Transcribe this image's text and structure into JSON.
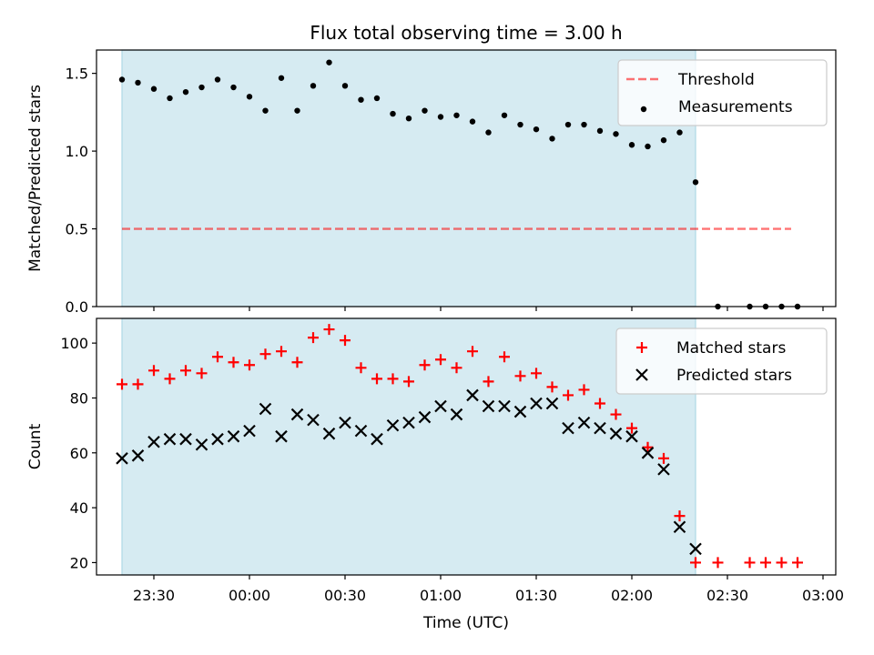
{
  "figure": {
    "title": "Flux total observing time = 3.00 h",
    "xlabel": "Time (UTC)",
    "xticks": [
      "23:30",
      "00:00",
      "00:30",
      "01:00",
      "01:30",
      "02:00",
      "02:30",
      "03:00"
    ],
    "colors": {
      "shade": "#add8e6",
      "threshold": "#ff0000",
      "matched": "#ff0000",
      "predicted": "#000000",
      "measurement": "#000000"
    }
  },
  "chart_data": [
    {
      "type": "scatter",
      "ylabel": "Matched/Predicted stars",
      "ylim": [
        0,
        1.65
      ],
      "yticks": [
        "0.0",
        "0.5",
        "1.0",
        "1.5"
      ],
      "xlim": [
        "23:12",
        "03:04"
      ],
      "shaded_span": [
        "23:20",
        "02:20"
      ],
      "legend": {
        "placement": "top-right",
        "entries": [
          "Threshold",
          "Measurements"
        ]
      },
      "threshold": {
        "name": "Threshold",
        "y": 0.5,
        "x_range": [
          "23:20",
          "02:50"
        ]
      },
      "series": [
        {
          "name": "Measurements",
          "x": [
            "23:20",
            "23:25",
            "23:30",
            "23:35",
            "23:40",
            "23:45",
            "23:50",
            "23:55",
            "00:00",
            "00:05",
            "00:10",
            "00:15",
            "00:20",
            "00:25",
            "00:30",
            "00:35",
            "00:40",
            "00:45",
            "00:50",
            "00:55",
            "01:00",
            "01:05",
            "01:10",
            "01:15",
            "01:20",
            "01:25",
            "01:30",
            "01:35",
            "01:40",
            "01:45",
            "01:50",
            "01:55",
            "02:00",
            "02:05",
            "02:10",
            "02:15",
            "02:20",
            "02:27",
            "02:37",
            "02:42",
            "02:47",
            "02:52"
          ],
          "values": [
            1.46,
            1.44,
            1.4,
            1.34,
            1.38,
            1.41,
            1.46,
            1.41,
            1.35,
            1.26,
            1.47,
            1.26,
            1.42,
            1.57,
            1.42,
            1.33,
            1.34,
            1.24,
            1.21,
            1.26,
            1.22,
            1.23,
            1.19,
            1.12,
            1.23,
            1.17,
            1.14,
            1.08,
            1.17,
            1.17,
            1.13,
            1.11,
            1.04,
            1.03,
            1.07,
            1.12,
            0.8,
            0.0,
            0.0,
            0.0,
            0.0,
            0.0
          ]
        }
      ]
    },
    {
      "type": "scatter",
      "ylabel": "Count",
      "ylim": [
        15.5,
        109
      ],
      "yticks": [
        "20",
        "40",
        "60",
        "80",
        "100"
      ],
      "xlim": [
        "23:12",
        "03:04"
      ],
      "shaded_span": [
        "23:20",
        "02:20"
      ],
      "legend": {
        "placement": "top-right",
        "entries": [
          "Matched stars",
          "Predicted stars"
        ]
      },
      "series": [
        {
          "name": "Matched stars",
          "marker": "plus",
          "x": [
            "23:20",
            "23:25",
            "23:30",
            "23:35",
            "23:40",
            "23:45",
            "23:50",
            "23:55",
            "00:00",
            "00:05",
            "00:10",
            "00:15",
            "00:20",
            "00:25",
            "00:30",
            "00:35",
            "00:40",
            "00:45",
            "00:50",
            "00:55",
            "01:00",
            "01:05",
            "01:10",
            "01:15",
            "01:20",
            "01:25",
            "01:30",
            "01:35",
            "01:40",
            "01:45",
            "01:50",
            "01:55",
            "02:00",
            "02:05",
            "02:10",
            "02:15",
            "02:20",
            "02:27",
            "02:37",
            "02:42",
            "02:47",
            "02:52"
          ],
          "values": [
            85,
            85,
            90,
            87,
            90,
            89,
            95,
            93,
            92,
            96,
            97,
            93,
            102,
            105,
            101,
            91,
            87,
            87,
            86,
            92,
            94,
            91,
            97,
            86,
            95,
            88,
            89,
            84,
            81,
            83,
            78,
            74,
            69,
            62,
            58,
            37,
            20,
            20,
            20,
            20,
            20,
            20
          ]
        },
        {
          "name": "Predicted stars",
          "marker": "x",
          "x": [
            "23:20",
            "23:25",
            "23:30",
            "23:35",
            "23:40",
            "23:45",
            "23:50",
            "23:55",
            "00:00",
            "00:05",
            "00:10",
            "00:15",
            "00:20",
            "00:25",
            "00:30",
            "00:35",
            "00:40",
            "00:45",
            "00:50",
            "00:55",
            "01:00",
            "01:05",
            "01:10",
            "01:15",
            "01:20",
            "01:25",
            "01:30",
            "01:35",
            "01:40",
            "01:45",
            "01:50",
            "01:55",
            "02:00",
            "02:05",
            "02:10",
            "02:15",
            "02:20"
          ],
          "values": [
            58,
            59,
            64,
            65,
            65,
            63,
            65,
            66,
            68,
            76,
            66,
            74,
            72,
            67,
            71,
            68,
            65,
            70,
            71,
            73,
            77,
            74,
            81,
            77,
            77,
            75,
            78,
            78,
            69,
            71,
            69,
            67,
            66,
            60,
            54,
            33,
            25
          ]
        }
      ]
    }
  ]
}
